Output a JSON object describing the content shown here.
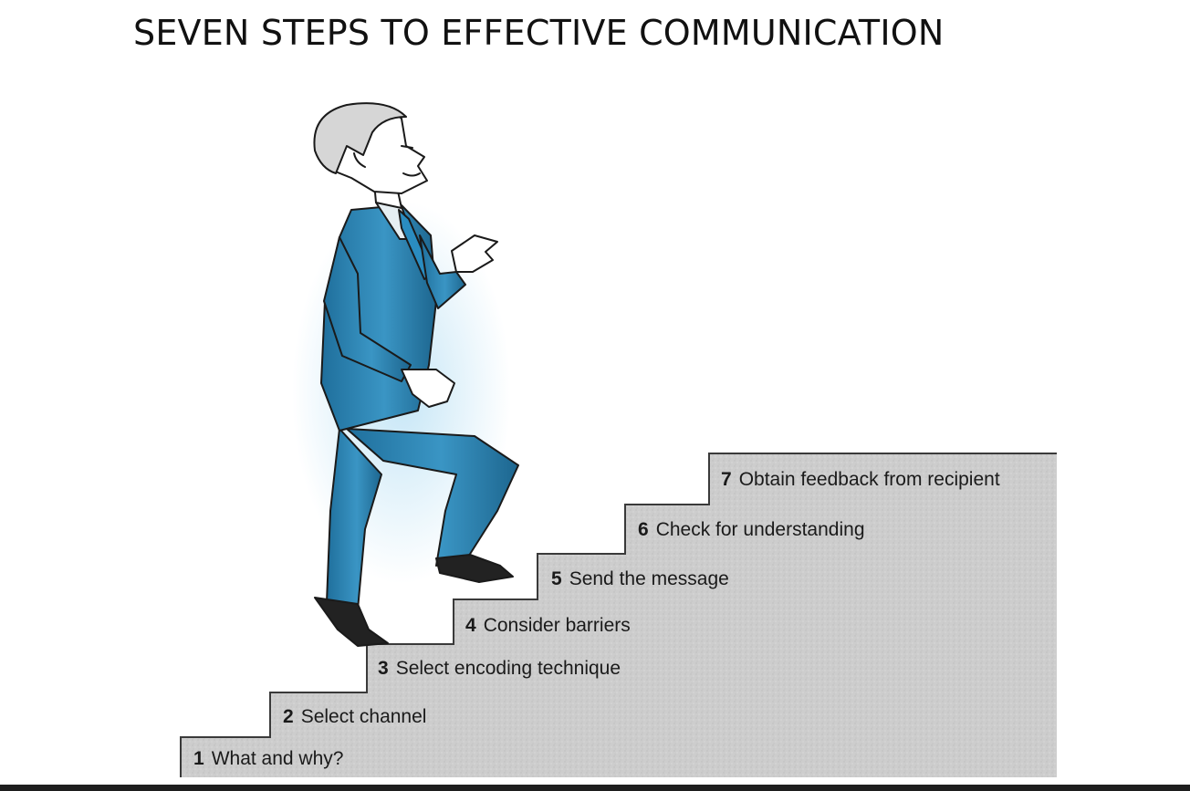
{
  "slide": {
    "title": "SEVEN STEPS TO EFFECTIVE COMMUNICATION"
  },
  "steps": [
    {
      "number": "1",
      "label": "What and why?"
    },
    {
      "number": "2",
      "label": "Select channel"
    },
    {
      "number": "3",
      "label": "Select encoding technique"
    },
    {
      "number": "4",
      "label": "Consider barriers"
    },
    {
      "number": "5",
      "label": "Send the message"
    },
    {
      "number": "6",
      "label": "Check for understanding"
    },
    {
      "number": "7",
      "label": "Obtain feedback from recipient"
    }
  ],
  "illustration": {
    "figure": "businessman-climbing-stairs",
    "suit_color": "#2f86b5",
    "stair_color": "#cfcfcf"
  }
}
